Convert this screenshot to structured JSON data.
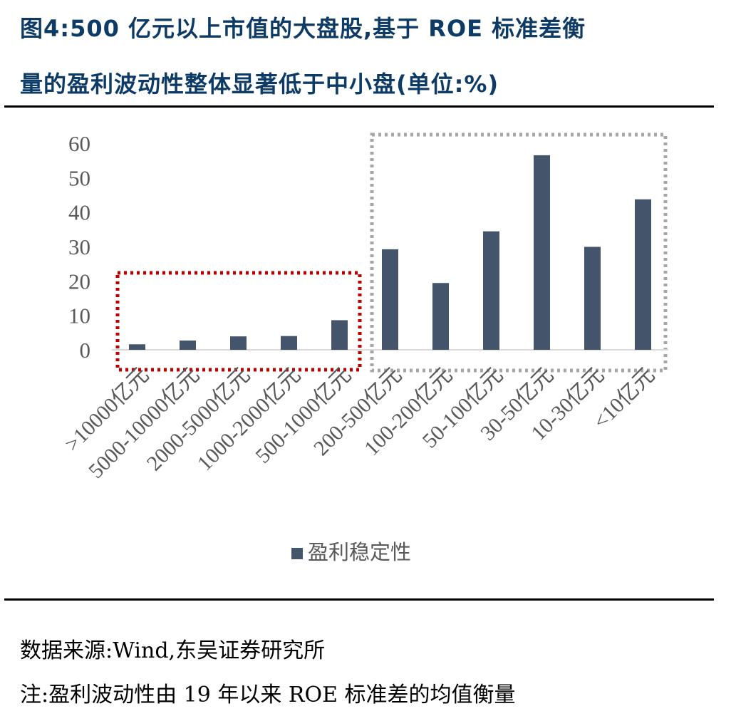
{
  "title_line1": "图4:500 亿元以上市值的大盘股,基于 ROE 标准差衡",
  "title_line2": "量的盈利波动性整体显著低于中小盘(单位:%)",
  "source": "数据来源:Wind,东吴证券研究所",
  "note": "注:盈利波动性由 19 年以来 ROE 标准差的均值衡量",
  "colors": {
    "bar": "#44546a",
    "red_box": "#c00000",
    "gray_box": "#a6a6a6",
    "title": "#0d3b66"
  },
  "chart_data": {
    "type": "bar",
    "title": "",
    "xlabel": "",
    "ylabel": "",
    "categories": [
      ">10000亿元",
      "5000-10000亿元",
      "2000-5000亿元",
      "1000-2000亿元",
      "500-1000亿元",
      "200-500亿元",
      "100-200亿元",
      "50-100亿元",
      "30-50亿元",
      "10-30亿元",
      "<10亿元"
    ],
    "series": [
      {
        "name": "盈利稳定性",
        "values": [
          1.6,
          2.7,
          3.9,
          4.0,
          8.6,
          29.2,
          19.4,
          34.4,
          56.5,
          29.9,
          43.7
        ]
      }
    ],
    "ylim": [
      0,
      60
    ],
    "yticks": [
      0,
      10,
      20,
      30,
      40,
      50,
      60
    ],
    "grid": false,
    "legend": "bottom-center",
    "annotations": [
      {
        "kind": "dotted-box",
        "color": "red",
        "covers": ">10000亿元 to 500-1000亿元"
      },
      {
        "kind": "dotted-box",
        "color": "gray",
        "covers": "200-500亿元 to <10亿元"
      }
    ]
  }
}
